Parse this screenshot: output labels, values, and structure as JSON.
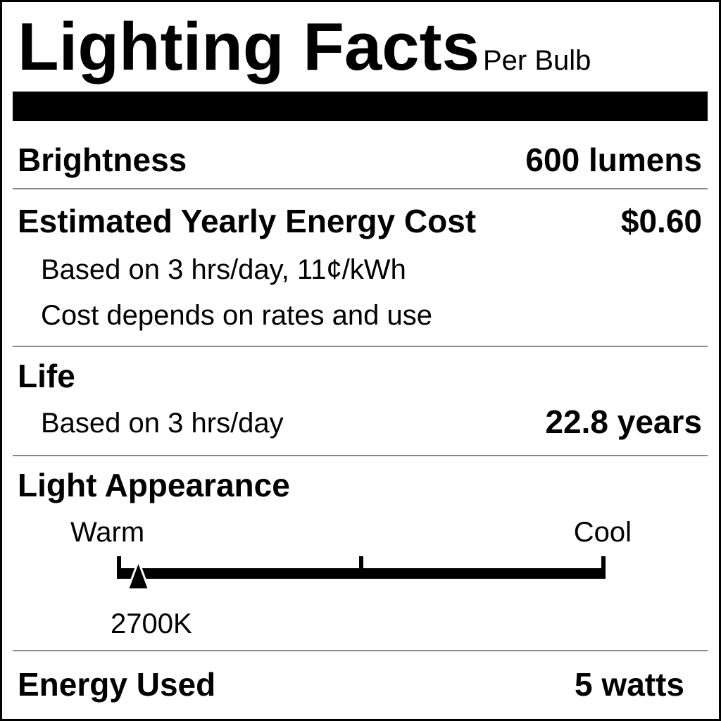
{
  "header": {
    "title": "Lighting Facts",
    "subtitle": "Per Bulb"
  },
  "brightness": {
    "label": "Brightness",
    "value": "600 lumens"
  },
  "cost": {
    "label": "Estimated Yearly Energy Cost",
    "value": "$0.60",
    "note1": "Based on 3 hrs/day, 11¢/kWh",
    "note2": "Cost depends on rates and use"
  },
  "life": {
    "label": "Life",
    "note": "Based on 3 hrs/day",
    "value": "22.8 years"
  },
  "appearance": {
    "label": "Light Appearance",
    "warm_label": "Warm",
    "cool_label": "Cool",
    "value": "2700K",
    "marker_fraction": 0.04
  },
  "energy": {
    "label": "Energy Used",
    "value": "5 watts"
  }
}
